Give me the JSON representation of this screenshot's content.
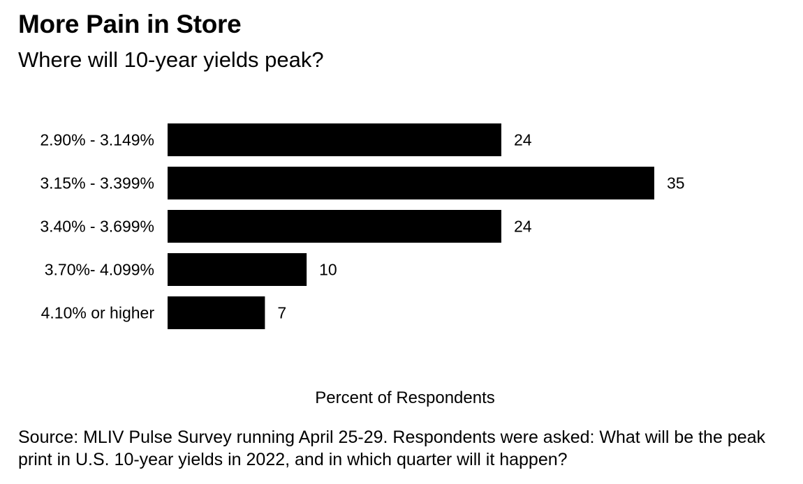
{
  "title": "More Pain in Store",
  "subtitle": "Where will 10-year yields peak?",
  "source": "Source: MLIV Pulse Survey running April 25-29. Respondents were asked: What will be the peak print in U.S. 10-year yields in 2022, and in which quarter will it happen?",
  "chart_data": {
    "type": "bar",
    "orientation": "horizontal",
    "categories": [
      "2.90% - 3.149%",
      "3.15% - 3.399%",
      "3.40% - 3.699%",
      "3.70%- 4.099%",
      "4.10% or higher"
    ],
    "values": [
      24,
      35,
      24,
      10,
      7
    ],
    "xlabel": "Percent of Respondents",
    "ylabel": "",
    "xlim": [
      0,
      35
    ],
    "bar_color": "#000000",
    "grid": false,
    "data_labels": true
  }
}
